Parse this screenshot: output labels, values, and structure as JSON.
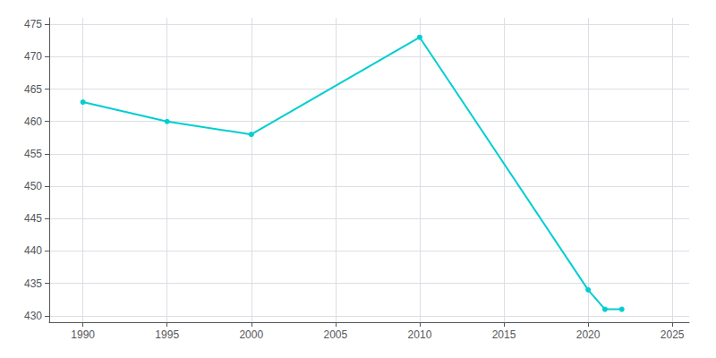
{
  "chart_data": {
    "type": "line",
    "x": [
      1990,
      1995,
      2000,
      2010,
      2020,
      2021,
      2022
    ],
    "values": [
      463,
      460,
      458,
      473,
      434,
      431,
      431
    ],
    "color": "#00CED1",
    "marker": "circle",
    "xlim": [
      1988,
      2026
    ],
    "xticks": [
      1990,
      1995,
      2000,
      2005,
      2010,
      2015,
      2020,
      2025
    ],
    "ylim": [
      429,
      476
    ],
    "yticks": [
      430,
      435,
      440,
      445,
      450,
      455,
      460,
      465,
      470,
      475
    ],
    "grid": true
  }
}
